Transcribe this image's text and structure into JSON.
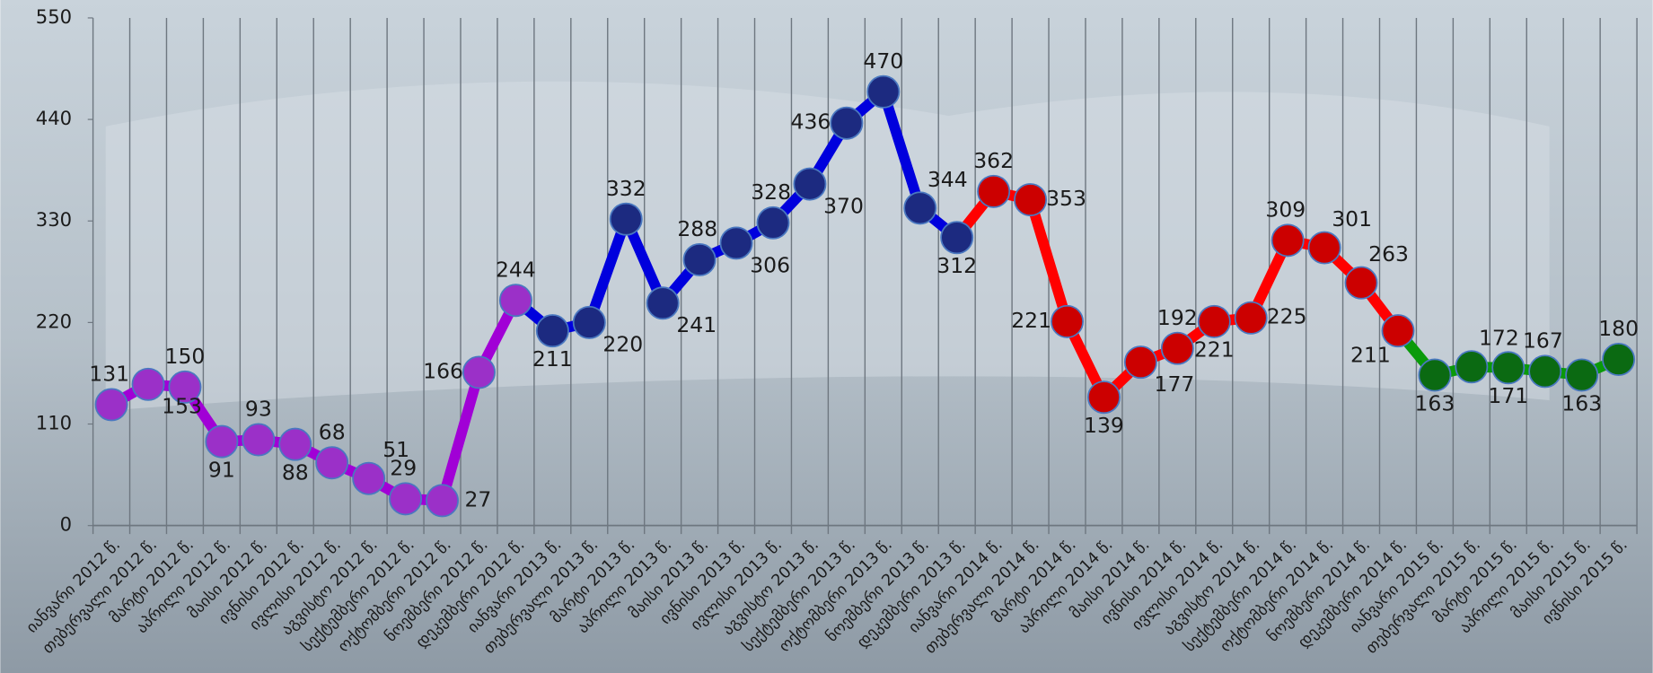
{
  "chart_data": {
    "type": "line",
    "categories": [
      "იანვარი 2012 წ.",
      "თებერვალი 2012 წ.",
      "მარტი 2012 წ.",
      "აპრილი 2012 წ.",
      "მაისი 2012 წ.",
      "ივნისი 2012 წ.",
      "ივლისი 2012 წ.",
      "აგვისტო 2012 წ.",
      "სექტემბერი 2012 წ.",
      "ოქტომბერი 2012 წ.",
      "ნოემბერი 2012 წ.",
      "დეკემბერი 2012 წ.",
      "იანვარი 2013 წ.",
      "თებერვალი 2013 წ.",
      "მარტი 2013 წ.",
      "აპრილი 2013 წ.",
      "მაისი 2013 წ.",
      "ივნისი 2013 წ.",
      "ივლისი 2013 წ.",
      "აგვისტო 2013 წ.",
      "სექტემბერი 2013 წ.",
      "ოქტომბერი 2013 წ.",
      "ნოემბერი 2013 წ.",
      "დეკემბერი 2013 წ.",
      "იანვარი 2014 წ.",
      "თებერვალი 2014 წ.",
      "მარტი 2014 წ.",
      "აპრილი 2014 წ.",
      "მაისი 2014 წ.",
      "ივნისი 2014 წ.",
      "ივლისი 2014 წ.",
      "აგვისტო 2014 წ.",
      "სექტემბერი 2014 წ.",
      "ოქტომბერი 2014 წ.",
      "ნოემბერი 2014 წ.",
      "დეკემბერი 2014 წ.",
      "იანვარი 2015 წ.",
      "თებერვალი 2015 წ.",
      "მარტი 2015 წ.",
      "აპრილი 2015 წ.",
      "მაისი 2015 წ.",
      "ივნისი 2015 წ."
    ],
    "series": [
      {
        "color": "#a100d6",
        "marker_color": "#9b30c8",
        "values": [
          131,
          153,
          150,
          91,
          93,
          88,
          68,
          51,
          29,
          27,
          166,
          244,
          null,
          null,
          null,
          null,
          null,
          null,
          null,
          null,
          null,
          null,
          null,
          null,
          null,
          null,
          null,
          null,
          null,
          null,
          null,
          null,
          null,
          null,
          null,
          null,
          null,
          null,
          null,
          null,
          null,
          null
        ]
      },
      {
        "color": "#0000dd",
        "marker_color": "#1c2a80",
        "values": [
          null,
          null,
          null,
          null,
          null,
          null,
          null,
          null,
          null,
          null,
          null,
          null,
          211,
          220,
          332,
          241,
          288,
          306,
          328,
          370,
          436,
          470,
          344,
          312,
          null,
          null,
          null,
          null,
          null,
          null,
          null,
          null,
          null,
          null,
          null,
          null,
          null,
          null,
          null,
          null,
          null,
          null
        ]
      },
      {
        "color": "#ff0000",
        "marker_color": "#cc0000",
        "values": [
          null,
          null,
          null,
          null,
          null,
          null,
          null,
          null,
          null,
          null,
          null,
          null,
          null,
          null,
          null,
          null,
          null,
          null,
          null,
          null,
          null,
          null,
          null,
          null,
          362,
          353,
          221,
          139,
          177,
          192,
          221,
          225,
          309,
          301,
          263,
          211,
          null,
          null,
          null,
          null,
          null,
          null
        ]
      },
      {
        "color": "#0a9a0a",
        "marker_color": "#0b6a12",
        "values": [
          null,
          null,
          null,
          null,
          null,
          null,
          null,
          null,
          null,
          null,
          null,
          null,
          null,
          null,
          null,
          null,
          null,
          null,
          null,
          null,
          null,
          null,
          null,
          null,
          null,
          null,
          null,
          null,
          null,
          null,
          null,
          null,
          null,
          null,
          null,
          null,
          163,
          172,
          171,
          167,
          163,
          180
        ]
      }
    ],
    "ylim": [
      0,
      550
    ],
    "yticks": [
      0,
      110,
      220,
      330,
      440,
      550
    ]
  }
}
